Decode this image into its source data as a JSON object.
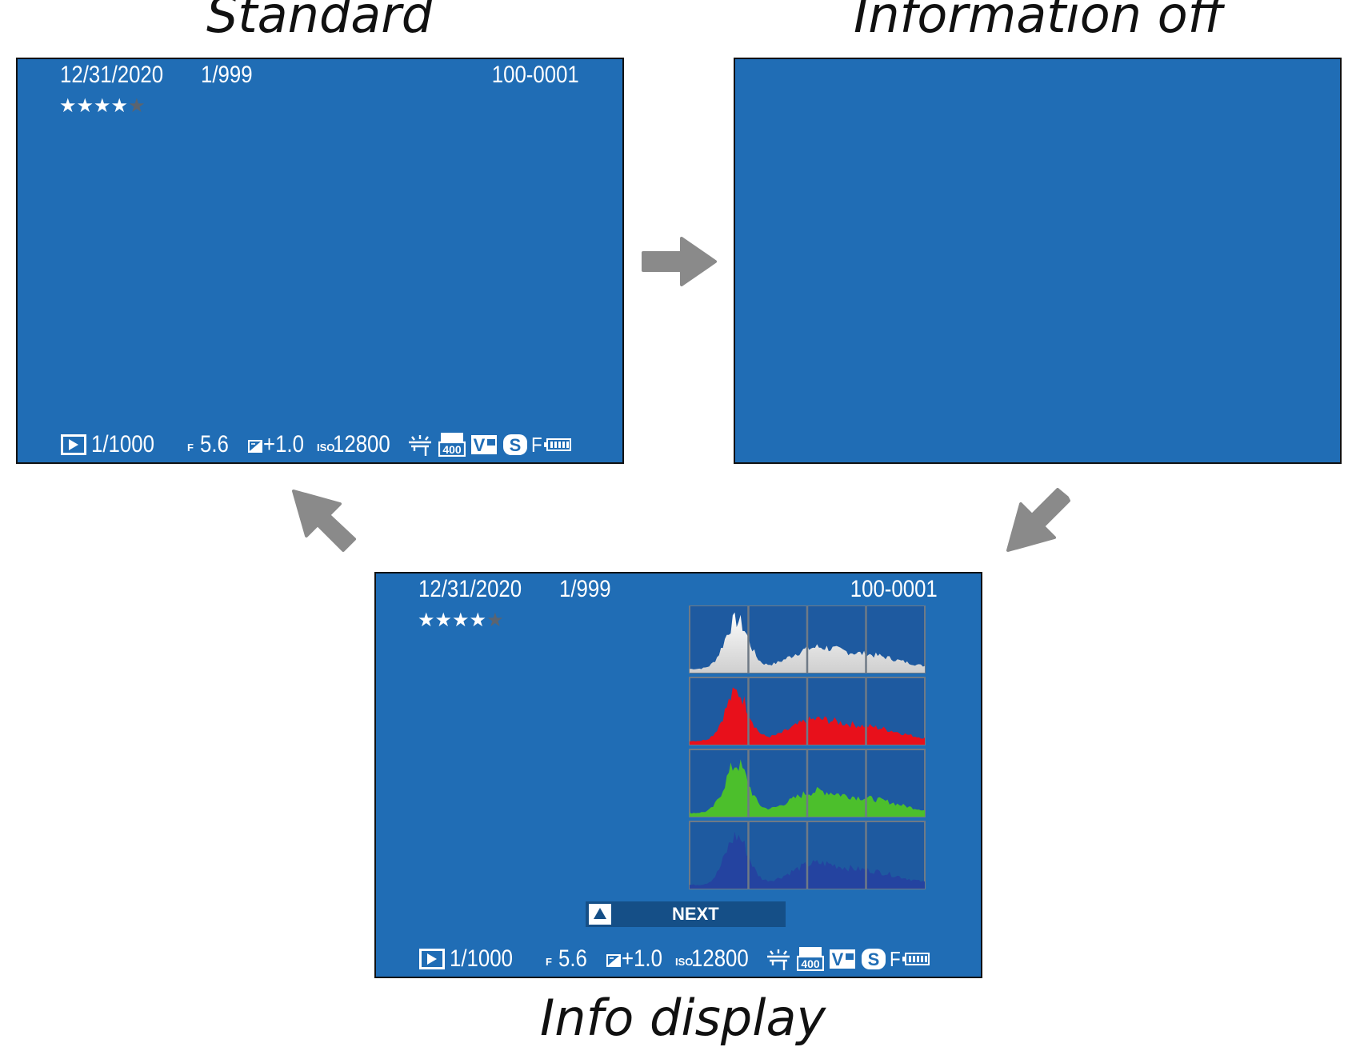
{
  "captions": {
    "standard": "Standard",
    "information_off": "Information off",
    "info_display": "Info display"
  },
  "screen": {
    "date": "12/31/2020",
    "frame": "1/999",
    "file_no": "100-0001",
    "rating": {
      "filled": 4,
      "total": 5
    },
    "shutter": "1/1000",
    "aperture_prefix": "F",
    "aperture": "5.6",
    "exposure_comp": "+1.0",
    "iso_prefix": "ISO",
    "iso": "12800",
    "film_sim_letter": "F",
    "icons": [
      "playback-icon",
      "aperture-f-icon",
      "exposure-compensation-icon",
      "iso-icon",
      "white-balance-icon",
      "dynamic-range-400-icon",
      "film-simulation-velvia-icon",
      "image-size-s-icon",
      "image-quality-f-icon",
      "battery-icon"
    ]
  },
  "next_button": {
    "label": "NEXT",
    "icon": "up-triangle-icon"
  },
  "histogram": {
    "channels": [
      {
        "name": "luminance",
        "color": "#e8e8e8"
      },
      {
        "name": "red",
        "color": "#e8101b"
      },
      {
        "name": "green",
        "color": "#4cbf2c"
      },
      {
        "name": "blue",
        "color": "#2443a0"
      }
    ]
  },
  "colors": {
    "screen_bg": "#206db5",
    "arrow": "#8a8a8a",
    "border": "#111111"
  },
  "arrows": [
    "right-arrow-icon",
    "down-left-arrow-icon",
    "up-left-arrow-icon"
  ]
}
